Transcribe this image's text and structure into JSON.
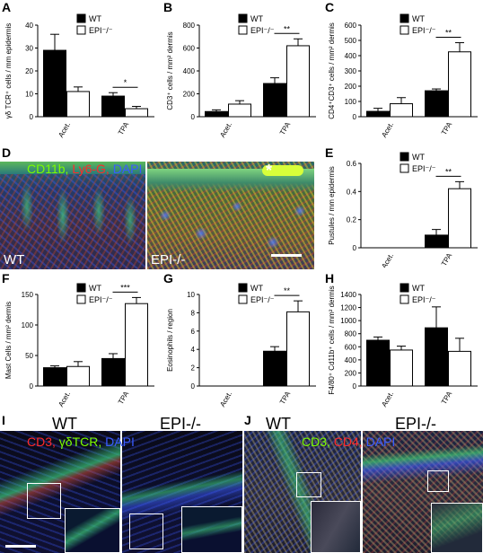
{
  "chart_data": [
    {
      "panel": "A",
      "type": "bar",
      "categories": [
        "Acet.",
        "TPA"
      ],
      "series": [
        {
          "name": "WT",
          "values": [
            29,
            9
          ],
          "errors": [
            7,
            1.5
          ]
        },
        {
          "name": "EPI-/-",
          "values": [
            11,
            3.5
          ],
          "errors": [
            2,
            1
          ]
        }
      ],
      "ylabel": "γδ TCR⁺ cells / mm epidermis",
      "ylim": [
        0,
        40
      ],
      "yticks": [
        0,
        10,
        20,
        30,
        40
      ],
      "significance": [
        {
          "category": "TPA",
          "label": "*"
        }
      ]
    },
    {
      "panel": "B",
      "type": "bar",
      "categories": [
        "Acet.",
        "TPA"
      ],
      "series": [
        {
          "name": "WT",
          "values": [
            45,
            290
          ],
          "errors": [
            15,
            50
          ]
        },
        {
          "name": "EPI-/-",
          "values": [
            110,
            620
          ],
          "errors": [
            30,
            60
          ]
        }
      ],
      "ylabel": "CD3⁺ cells / mm² dermis",
      "ylim": [
        0,
        800
      ],
      "yticks": [
        0,
        200,
        400,
        600,
        800
      ],
      "significance": [
        {
          "category": "TPA",
          "label": "**"
        }
      ]
    },
    {
      "panel": "C",
      "type": "bar",
      "categories": [
        "Acet.",
        "TPA"
      ],
      "series": [
        {
          "name": "WT",
          "values": [
            35,
            170
          ],
          "errors": [
            20,
            12
          ]
        },
        {
          "name": "EPI-/-",
          "values": [
            85,
            425
          ],
          "errors": [
            40,
            60
          ]
        }
      ],
      "ylabel": "CD4⁺CD3⁺ cells / mm² dermis",
      "ylim": [
        0,
        600
      ],
      "yticks": [
        0,
        100,
        200,
        300,
        400,
        500,
        600
      ],
      "significance": [
        {
          "category": "TPA",
          "label": "**"
        }
      ]
    },
    {
      "panel": "E",
      "type": "bar",
      "categories": [
        "Acet.",
        "TPA"
      ],
      "series": [
        {
          "name": "WT",
          "values": [
            0,
            0.09
          ],
          "errors": [
            0,
            0.04
          ]
        },
        {
          "name": "EPI-/-",
          "values": [
            0,
            0.42
          ],
          "errors": [
            0,
            0.05
          ]
        }
      ],
      "ylabel": "Pustules / mm epidermis",
      "ylim": [
        0,
        0.6
      ],
      "yticks": [
        0,
        0.2,
        0.4,
        0.6
      ],
      "significance": [
        {
          "category": "TPA",
          "label": "**"
        }
      ]
    },
    {
      "panel": "F",
      "type": "bar",
      "categories": [
        "Acet.",
        "TPA"
      ],
      "series": [
        {
          "name": "WT",
          "values": [
            30,
            45
          ],
          "errors": [
            3,
            8
          ]
        },
        {
          "name": "EPI-/-",
          "values": [
            32,
            135
          ],
          "errors": [
            8,
            10
          ]
        }
      ],
      "ylabel": "Mast Cells / mm² dermis",
      "ylim": [
        0,
        150
      ],
      "yticks": [
        0,
        50,
        100,
        150
      ],
      "significance": [
        {
          "category": "TPA",
          "label": "***"
        }
      ]
    },
    {
      "panel": "G",
      "type": "bar",
      "categories": [
        "Acet.",
        "TPA"
      ],
      "series": [
        {
          "name": "WT",
          "values": [
            0,
            3.8
          ],
          "errors": [
            0,
            0.5
          ]
        },
        {
          "name": "EPI-/-",
          "values": [
            0,
            8.1
          ],
          "errors": [
            0,
            1.2
          ]
        }
      ],
      "ylabel": "Eosinophils / region",
      "ylim": [
        0,
        10
      ],
      "yticks": [
        0,
        2,
        4,
        6,
        8,
        10
      ],
      "significance": [
        {
          "category": "TPA",
          "label": "**"
        }
      ]
    },
    {
      "panel": "H",
      "type": "bar",
      "categories": [
        "Acet.",
        "TPA"
      ],
      "series": [
        {
          "name": "WT",
          "values": [
            700,
            890
          ],
          "errors": [
            50,
            320
          ]
        },
        {
          "name": "EPI-/-",
          "values": [
            550,
            530
          ],
          "errors": [
            60,
            200
          ]
        }
      ],
      "ylabel": "F4/80⁺ Cd11b⁺ cells / mm² dermis",
      "ylim": [
        0,
        1400
      ],
      "yticks": [
        0,
        200,
        400,
        600,
        800,
        1000,
        1200,
        1400
      ],
      "significance": []
    }
  ],
  "legend": {
    "wt": "WT",
    "epi": "EPI⁻/⁻"
  },
  "panel_labels": {
    "a": "A",
    "b": "B",
    "c": "C",
    "d": "D",
    "e": "E",
    "f": "F",
    "g": "G",
    "h": "H",
    "i": "I",
    "j": "J"
  },
  "micro_d": {
    "stain_cd11b": "CD11b,",
    "stain_ly6g": "Ly6-G,",
    "stain_dapi": "DAPI",
    "asterisk": "*",
    "left_label": "WT",
    "right_label": "EPI-/-"
  },
  "micro_i": {
    "header_wt": "WT",
    "header_epi": "EPI-/-",
    "stain_cd3": "CD3,",
    "stain_gdtcr": "γδTCR,",
    "stain_dapi": "DAPI"
  },
  "micro_j": {
    "header_wt": "WT",
    "header_epi": "EPI-/-",
    "stain_cd3": "CD3,",
    "stain_cd4": "CD4,",
    "stain_dapi": "DAPI"
  },
  "colors": {
    "wt": "#000000",
    "epi": "#ffffff",
    "cd11b": "#7CFC00",
    "ly6g": "#ff2a2a",
    "dapi": "#3a5bff"
  }
}
